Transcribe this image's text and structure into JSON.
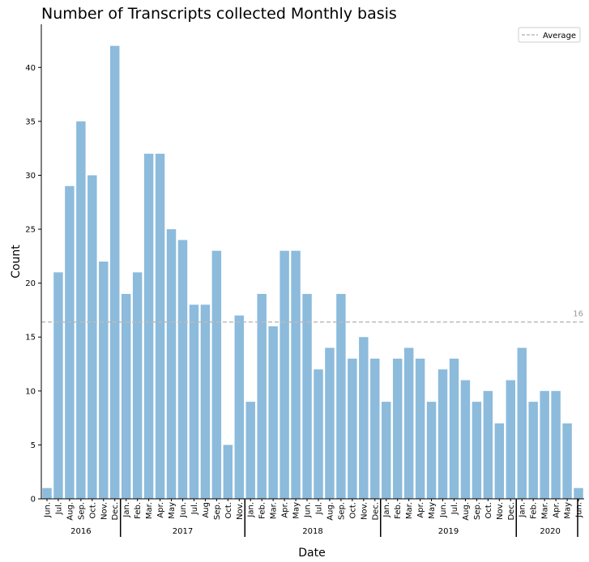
{
  "chart_data": {
    "type": "bar",
    "title": "Number of Transcripts collected Monthly basis",
    "xlabel": "Date",
    "ylabel": "Count",
    "ylim": [
      0,
      44
    ],
    "yticks": [
      "0",
      "5",
      "10",
      "15",
      "20",
      "25",
      "30",
      "35",
      "40"
    ],
    "categories": [
      "Jun.",
      "Jul.",
      "Aug.",
      "Sep.",
      "Oct.",
      "Nov.",
      "Dec.",
      "Jan.",
      "Feb.",
      "Mar.",
      "Apr.",
      "May",
      "Jun.",
      "Jul.",
      "Aug",
      "Sep.",
      "Oct.",
      "Nov.",
      "Jan.",
      "Feb.",
      "Mar.",
      "Apr.",
      "May",
      "Jun.",
      "Jul.",
      "Aug.",
      "Sep.",
      "Oct.",
      "Nov.",
      "Dec.",
      "Jan.",
      "Feb.",
      "Mar.",
      "Apr.",
      "May",
      "Jun.",
      "Jul.",
      "Aug.",
      "Sep.",
      "Oct.",
      "Nov.",
      "Dec.",
      "Jan.",
      "Feb.",
      "Mar.",
      "Apr.",
      "May",
      "Jun."
    ],
    "values": [
      1,
      21,
      29,
      35,
      30,
      22,
      42,
      19,
      21,
      32,
      32,
      25,
      24,
      18,
      18,
      23,
      5,
      17,
      9,
      19,
      16,
      23,
      23,
      19,
      12,
      14,
      19,
      13,
      15,
      13,
      9,
      13,
      14,
      13,
      9,
      12,
      13,
      11,
      9,
      10,
      7,
      11,
      14,
      9,
      10,
      10,
      7,
      1
    ],
    "years": [
      {
        "label": "2016",
        "start": 0,
        "end": 6
      },
      {
        "label": "2017",
        "start": 7,
        "end": 17
      },
      {
        "label": "2018",
        "start": 18,
        "end": 29
      },
      {
        "label": "2019",
        "start": 30,
        "end": 41
      },
      {
        "label": "2020",
        "start": 42,
        "end": 47
      }
    ],
    "average": 16.4,
    "average_label": "16",
    "legend": {
      "label": "Average",
      "position": "top-right"
    },
    "bar_color": "#8cbbdc",
    "average_color": "#bbbbbb",
    "grid": false
  }
}
